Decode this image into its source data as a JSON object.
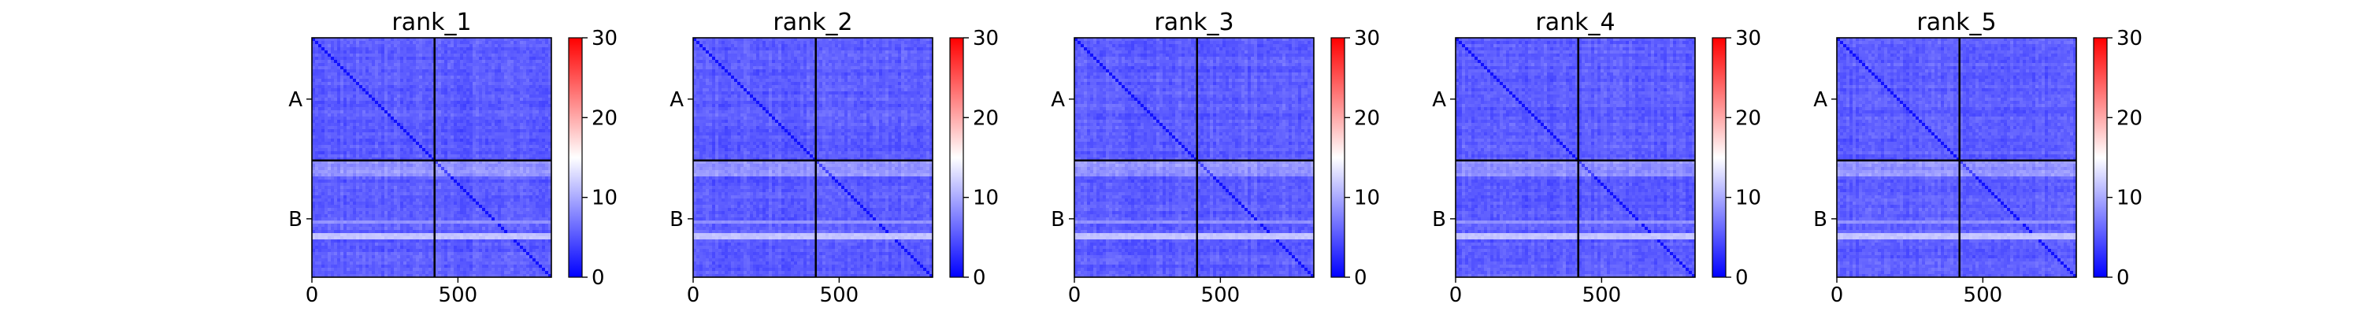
{
  "chart_data": [
    {
      "type": "heatmap",
      "title": "rank_1",
      "x_ticks": [
        0,
        500
      ],
      "xlim": [
        0,
        820
      ],
      "ylim": [
        0,
        820
      ],
      "y_tick_labels": [
        "A",
        "B"
      ],
      "block_boundary": 420,
      "colorbar": {
        "range": [
          0,
          30
        ],
        "ticks": [
          0,
          10,
          20,
          30
        ],
        "colormap": "bwr"
      }
    },
    {
      "type": "heatmap",
      "title": "rank_2",
      "x_ticks": [
        0,
        500
      ],
      "xlim": [
        0,
        820
      ],
      "ylim": [
        0,
        820
      ],
      "y_tick_labels": [
        "A",
        "B"
      ],
      "block_boundary": 420,
      "colorbar": {
        "range": [
          0,
          30
        ],
        "ticks": [
          0,
          10,
          20,
          30
        ],
        "colormap": "bwr"
      }
    },
    {
      "type": "heatmap",
      "title": "rank_3",
      "x_ticks": [
        0,
        500
      ],
      "xlim": [
        0,
        820
      ],
      "ylim": [
        0,
        820
      ],
      "y_tick_labels": [
        "A",
        "B"
      ],
      "block_boundary": 420,
      "colorbar": {
        "range": [
          0,
          30
        ],
        "ticks": [
          0,
          10,
          20,
          30
        ],
        "colormap": "bwr"
      }
    },
    {
      "type": "heatmap",
      "title": "rank_4",
      "x_ticks": [
        0,
        500
      ],
      "xlim": [
        0,
        820
      ],
      "ylim": [
        0,
        820
      ],
      "y_tick_labels": [
        "A",
        "B"
      ],
      "block_boundary": 420,
      "colorbar": {
        "range": [
          0,
          30
        ],
        "ticks": [
          0,
          10,
          20,
          30
        ],
        "colormap": "bwr"
      }
    },
    {
      "type": "heatmap",
      "title": "rank_5",
      "x_ticks": [
        0,
        500
      ],
      "xlim": [
        0,
        820
      ],
      "ylim": [
        0,
        820
      ],
      "y_tick_labels": [
        "A",
        "B"
      ],
      "block_boundary": 420,
      "colorbar": {
        "range": [
          0,
          30
        ],
        "ticks": [
          0,
          10,
          20,
          30
        ],
        "colormap": "bwr"
      }
    }
  ]
}
